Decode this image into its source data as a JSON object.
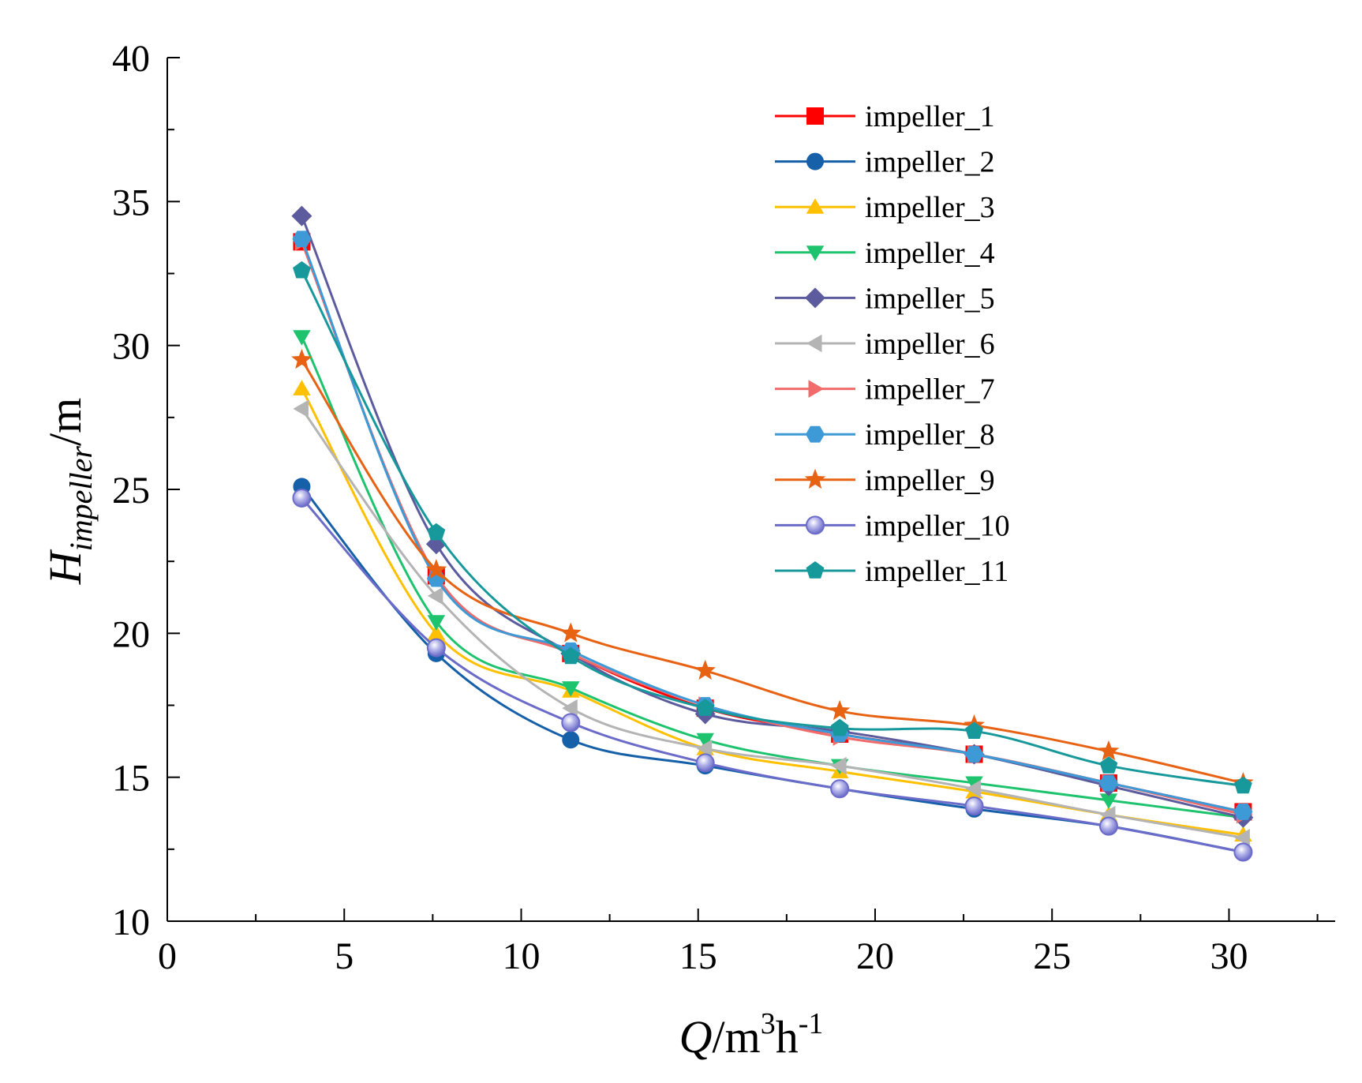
{
  "chart_data": {
    "type": "line",
    "xlabel": {
      "main": "Q",
      "unit": "/m",
      "sup1": "3",
      "mid": "h",
      "sup2": "-1"
    },
    "ylabel": {
      "main": "H",
      "sub": "impeller",
      "unit": "/m"
    },
    "xlim": [
      0,
      33
    ],
    "ylim": [
      10,
      40
    ],
    "x_ticks": [
      0,
      5,
      10,
      15,
      20,
      25,
      30
    ],
    "x_tick_labels": [
      "0",
      "5",
      "10",
      "15",
      "20",
      "25",
      "30"
    ],
    "y_ticks": [
      10,
      15,
      20,
      25,
      30,
      35,
      40
    ],
    "y_tick_labels": [
      "10",
      "15",
      "20",
      "25",
      "30",
      "35",
      "40"
    ],
    "grid": false,
    "legend_position": "top-right",
    "x": [
      3.8,
      7.6,
      11.4,
      15.2,
      19.0,
      22.8,
      26.6,
      30.4
    ],
    "series": [
      {
        "name": "impeller_1",
        "color": "#ff0000",
        "marker": "square",
        "values": [
          33.6,
          22.0,
          19.3,
          17.4,
          16.5,
          15.8,
          14.8,
          13.8
        ]
      },
      {
        "name": "impeller_2",
        "color": "#1560a8",
        "marker": "circle",
        "values": [
          25.1,
          19.3,
          16.3,
          15.4,
          14.6,
          13.9,
          13.3,
          12.4
        ]
      },
      {
        "name": "impeller_3",
        "color": "#ffc000",
        "marker": "triangle-up",
        "values": [
          28.5,
          20.0,
          18.0,
          16.0,
          15.2,
          14.5,
          13.7,
          13.0
        ]
      },
      {
        "name": "impeller_4",
        "color": "#1ec36e",
        "marker": "triangle-down",
        "values": [
          30.3,
          20.4,
          18.1,
          16.3,
          15.4,
          14.8,
          14.2,
          13.6
        ]
      },
      {
        "name": "impeller_5",
        "color": "#5b5b9e",
        "marker": "diamond",
        "values": [
          34.5,
          23.1,
          19.3,
          17.2,
          16.6,
          15.8,
          14.7,
          13.6
        ]
      },
      {
        "name": "impeller_6",
        "color": "#b4b4b4",
        "marker": "triangle-left",
        "values": [
          27.8,
          21.3,
          17.4,
          16.0,
          15.4,
          14.6,
          13.7,
          12.9
        ]
      },
      {
        "name": "impeller_7",
        "color": "#f26b6b",
        "marker": "triangle-right",
        "values": [
          33.6,
          22.0,
          19.3,
          17.5,
          16.4,
          15.8,
          14.8,
          13.7
        ]
      },
      {
        "name": "impeller_8",
        "color": "#3d9ad6",
        "marker": "hexagon",
        "values": [
          33.7,
          21.9,
          19.4,
          17.5,
          16.5,
          15.8,
          14.8,
          13.8
        ]
      },
      {
        "name": "impeller_9",
        "color": "#e86214",
        "marker": "star",
        "values": [
          29.5,
          22.2,
          20.0,
          18.7,
          17.3,
          16.8,
          15.9,
          14.8
        ]
      },
      {
        "name": "impeller_10",
        "color": "#6b6bc9",
        "marker": "sphere",
        "values": [
          24.7,
          19.5,
          16.9,
          15.5,
          14.6,
          14.0,
          13.3,
          12.4
        ]
      },
      {
        "name": "impeller_11",
        "color": "#17989b",
        "marker": "pentagon",
        "values": [
          32.6,
          23.5,
          19.2,
          17.4,
          16.7,
          16.6,
          15.4,
          14.7
        ]
      }
    ]
  }
}
